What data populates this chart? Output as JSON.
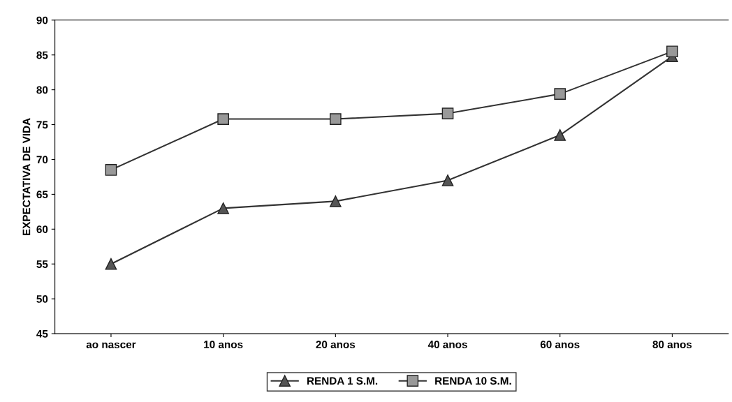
{
  "chart_data": {
    "type": "line",
    "ylabel": "EXPECTATIVA DE VIDA",
    "categories": [
      "ao nascer",
      "10 anos",
      "20 anos",
      "40 anos",
      "60 anos",
      "80 anos"
    ],
    "series": [
      {
        "name": "RENDA 1 S.M.",
        "color": "#333333",
        "marker": "triangle",
        "values": [
          55,
          63,
          64,
          67,
          73.5,
          84.8
        ]
      },
      {
        "name": "RENDA 10 S.M.",
        "color": "#333333",
        "marker": "square",
        "values": [
          68.5,
          75.8,
          75.8,
          76.6,
          79.4,
          85.5
        ]
      }
    ],
    "ylim": [
      45,
      90
    ],
    "yticks": [
      45,
      50,
      55,
      60,
      65,
      70,
      75,
      80,
      85,
      90
    ],
    "grid": false,
    "legend": "bottom",
    "line_style": "solid"
  }
}
